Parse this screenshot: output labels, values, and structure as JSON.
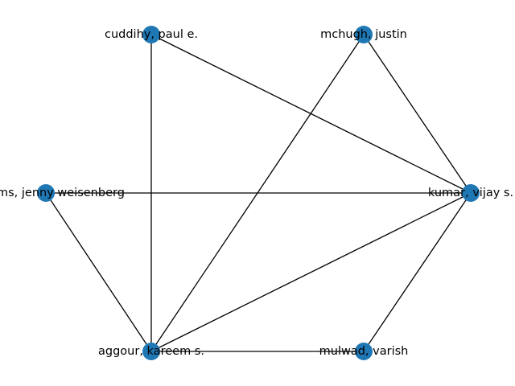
{
  "graph": {
    "node_color": "#1f77b4",
    "edge_color": "#000000",
    "nodes": [
      {
        "id": "cuddihy",
        "label": "cuddihy, paul e."
      },
      {
        "id": "mchugh",
        "label": "mchugh, justin"
      },
      {
        "id": "williams",
        "label": "williams, jenny weisenberg"
      },
      {
        "id": "kumar",
        "label": "kumar, vijay s."
      },
      {
        "id": "aggour",
        "label": "aggour, kareem s."
      },
      {
        "id": "mulwad",
        "label": "mulwad, varish"
      }
    ],
    "edges": [
      [
        "cuddihy",
        "kumar"
      ],
      [
        "cuddihy",
        "aggour"
      ],
      [
        "mchugh",
        "kumar"
      ],
      [
        "mchugh",
        "aggour"
      ],
      [
        "williams",
        "kumar"
      ],
      [
        "williams",
        "aggour"
      ],
      [
        "kumar",
        "aggour"
      ],
      [
        "kumar",
        "mulwad"
      ],
      [
        "aggour",
        "mulwad"
      ]
    ]
  }
}
